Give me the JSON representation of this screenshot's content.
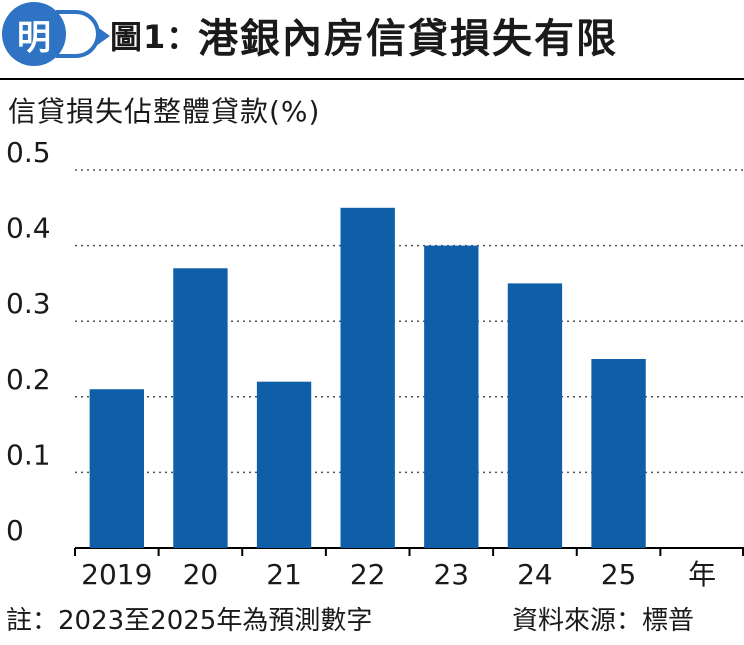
{
  "header": {
    "logo_char": "明",
    "figure_label": "圖1：",
    "title": "港銀內房信貸損失有限"
  },
  "chart_data": {
    "type": "bar",
    "title": "港銀內房信貸損失有限",
    "ylabel": "信貸損失佔整體貸款(%)",
    "xlabel": "",
    "x_unit_label": "年",
    "categories": [
      "2019",
      "20",
      "21",
      "22",
      "23",
      "24",
      "25"
    ],
    "values": [
      0.21,
      0.37,
      0.22,
      0.45,
      0.4,
      0.35,
      0.25
    ],
    "ylim": [
      0,
      0.5
    ],
    "yticks": [
      "0",
      "0.1",
      "0.2",
      "0.3",
      "0.4",
      "0.5"
    ],
    "ytick_values": [
      0,
      0.1,
      0.2,
      0.3,
      0.4,
      0.5
    ],
    "grid": "dotted horizontal",
    "legend": "none",
    "bar_color": "#0f5ea8"
  },
  "footer": {
    "note": "註：2023至2025年為預測數字",
    "source": "資料來源：標普"
  },
  "colors": {
    "accent": "#2f73c4",
    "bar": "#0f5ea8",
    "grid": "#555555"
  }
}
